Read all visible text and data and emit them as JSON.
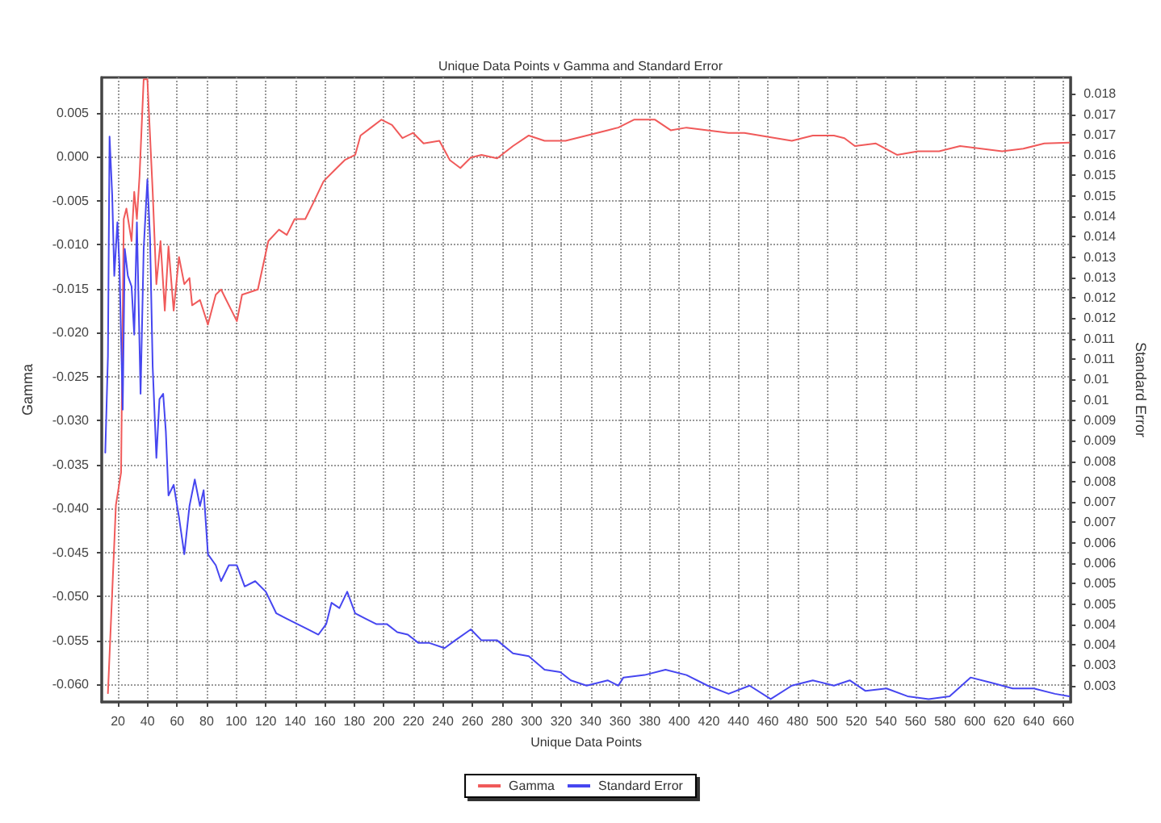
{
  "chart_data": {
    "type": "line",
    "title": "Unique Data Points v Gamma and Standard Error",
    "xlabel": "Unique Data Points",
    "ylabel": "Gamma",
    "y2label": "Standard Error",
    "xlim": [
      9,
      665
    ],
    "xticks": [
      20,
      40,
      60,
      80,
      100,
      120,
      140,
      160,
      180,
      200,
      220,
      240,
      260,
      280,
      300,
      320,
      340,
      360,
      380,
      400,
      420,
      440,
      460,
      480,
      500,
      520,
      540,
      560,
      580,
      600,
      620,
      640,
      660
    ],
    "ylim": [
      -0.062,
      0.009
    ],
    "yticks": [
      {
        "value": 0.005,
        "label": "0.005"
      },
      {
        "value": 0,
        "label": "0.000"
      },
      {
        "value": -0.005,
        "label": "-0.005"
      },
      {
        "value": -0.01,
        "label": "-0.010"
      },
      {
        "value": -0.015,
        "label": "-0.015"
      },
      {
        "value": -0.02,
        "label": "-0.020"
      },
      {
        "value": -0.025,
        "label": "-0.025"
      },
      {
        "value": -0.03,
        "label": "-0.030"
      },
      {
        "value": -0.035,
        "label": "-0.035"
      },
      {
        "value": -0.04,
        "label": "-0.040"
      },
      {
        "value": -0.045,
        "label": "-0.045"
      },
      {
        "value": -0.05,
        "label": "-0.050"
      },
      {
        "value": -0.055,
        "label": "-0.055"
      },
      {
        "value": -0.06,
        "label": "-0.060"
      }
    ],
    "y2lim": [
      0.0026,
      0.0179
    ],
    "y2ticks": [
      {
        "value": 0.003,
        "label": "0.003"
      },
      {
        "value": 0.0035,
        "label": "0.003"
      },
      {
        "value": 0.004,
        "label": "0.004"
      },
      {
        "value": 0.0045,
        "label": "0.004"
      },
      {
        "value": 0.005,
        "label": "0.005"
      },
      {
        "value": 0.0055,
        "label": "0.005"
      },
      {
        "value": 0.006,
        "label": "0.006"
      },
      {
        "value": 0.0065,
        "label": "0.006"
      },
      {
        "value": 0.007,
        "label": "0.007"
      },
      {
        "value": 0.0075,
        "label": "0.007"
      },
      {
        "value": 0.008,
        "label": "0.008"
      },
      {
        "value": 0.0085,
        "label": "0.008"
      },
      {
        "value": 0.009,
        "label": "0.009"
      },
      {
        "value": 0.0095,
        "label": "0.009"
      },
      {
        "value": 0.01,
        "label": "0.01"
      },
      {
        "value": 0.0105,
        "label": "0.01"
      },
      {
        "value": 0.011,
        "label": "0.011"
      },
      {
        "value": 0.0115,
        "label": "0.011"
      },
      {
        "value": 0.012,
        "label": "0.012"
      },
      {
        "value": 0.0125,
        "label": "0.012"
      },
      {
        "value": 0.013,
        "label": "0.013"
      },
      {
        "value": 0.0135,
        "label": "0.013"
      },
      {
        "value": 0.014,
        "label": "0.014"
      },
      {
        "value": 0.0145,
        "label": "0.014"
      },
      {
        "value": 0.015,
        "label": "0.015"
      },
      {
        "value": 0.0155,
        "label": "0.015"
      },
      {
        "value": 0.016,
        "label": "0.016"
      },
      {
        "value": 0.0165,
        "label": "0.017"
      },
      {
        "value": 0.017,
        "label": "0.017"
      },
      {
        "value": 0.0175,
        "label": "0.018"
      }
    ],
    "grid": true,
    "legend": "bottom",
    "marker": "none",
    "line_style": "solid",
    "series": [
      {
        "name": "Gamma",
        "color": "#f05a5a",
        "x": [
          13.2,
          18.6,
          22.1,
          23.9,
          25.7,
          29.2,
          31.0,
          32.8,
          34.6,
          37.4,
          39.9,
          43.5,
          46.0,
          48.8,
          51.7,
          54.2,
          57.7,
          61.3,
          64.9,
          68.4,
          70.2,
          75.5,
          80.9,
          86.2,
          89.8,
          93.3,
          96.9,
          100.5,
          104.0,
          109.4,
          114.7,
          121.8,
          129.0,
          134.3,
          139.6,
          146.8,
          152.1,
          159.2,
          166.3,
          173.5,
          180.6,
          184.2,
          191.3,
          198.4,
          205.5,
          212.6,
          219.8,
          226.9,
          237.6,
          244.7,
          251.8,
          258.9,
          266.1,
          276.7,
          287.4,
          298.1,
          308.8,
          323.0,
          337.3,
          351.5,
          358.7,
          369.3,
          383.6,
          394.2,
          404.9,
          419.2,
          433.4,
          444.1,
          454.8,
          465.5,
          476.2,
          490.4,
          504.7,
          511.8,
          518.9,
          533.1,
          547.4,
          561.6,
          575.9,
          590.1,
          604.4,
          618.6,
          632.9,
          647.1,
          664
        ],
        "values": [
          -0.061,
          -0.0396,
          -0.0359,
          -0.0071,
          -0.0059,
          -0.0096,
          -0.004,
          -0.0071,
          -0.0022,
          0.0088,
          0.0088,
          -0.004,
          -0.0145,
          -0.0096,
          -0.0175,
          -0.0102,
          -0.0175,
          -0.0114,
          -0.0145,
          -0.0138,
          -0.0169,
          -0.0163,
          -0.0191,
          -0.0157,
          -0.0151,
          -0.0163,
          -0.0175,
          -0.0187,
          -0.0157,
          -0.0154,
          -0.0151,
          -0.0096,
          -0.0083,
          -0.0089,
          -0.0071,
          -0.0071,
          -0.0053,
          -0.0028,
          -0.0016,
          -0.0004,
          0.0002,
          0.0024,
          0.0033,
          0.0042,
          0.0036,
          0.0021,
          0.0027,
          0.0015,
          0.0018,
          -0.0004,
          -0.0013,
          -0.0001,
          0.0002,
          -0.0002,
          0.0012,
          0.0024,
          0.0018,
          0.0018,
          0.0024,
          0.003,
          0.0033,
          0.0042,
          0.0042,
          0.003,
          0.0033,
          0.003,
          0.0027,
          0.0027,
          0.0024,
          0.0021,
          0.0018,
          0.0024,
          0.0024,
          0.0021,
          0.0012,
          0.0015,
          0.0002,
          0.0006,
          0.0006,
          0.0012,
          0.0009,
          0.0006,
          0.0009,
          0.0015,
          0.0016
        ]
      },
      {
        "name": "Standard Error",
        "color": "#4646f0",
        "axis": "y2",
        "x": [
          11.4,
          13.2,
          14.3,
          16.1,
          17.5,
          19.6,
          21.0,
          23.2,
          24.6,
          26.7,
          29.2,
          31.0,
          32.8,
          35.3,
          37.4,
          39.9,
          41.7,
          43.5,
          46.0,
          48.1,
          50.6,
          52.4,
          54.2,
          57.7,
          61.3,
          64.9,
          68.4,
          72.0,
          75.5,
          78.0,
          80.9,
          86.2,
          89.8,
          95.1,
          100.5,
          105.8,
          112.9,
          120.1,
          127.2,
          134.3,
          141.4,
          148.5,
          155.7,
          161.0,
          164.6,
          169.9,
          175.2,
          180.6,
          187.7,
          194.8,
          202.0,
          209.1,
          216.2,
          223.3,
          230.4,
          241.1,
          248.3,
          258.9,
          266.1,
          276.7,
          287.4,
          298.1,
          308.8,
          319.5,
          326.6,
          337.3,
          351.5,
          358.7,
          362.2,
          376.5,
          390.7,
          404.9,
          419.2,
          433.4,
          447.6,
          461.9,
          476.2,
          490.4,
          504.7,
          515.4,
          526.1,
          540.3,
          554.5,
          568.8,
          583.0,
          597.2,
          611.5,
          625.7,
          640.0,
          654.3,
          664
        ],
        "values": [
          0.00871,
          0.01107,
          0.01645,
          0.01501,
          0.01304,
          0.01435,
          0.0133,
          0.00976,
          0.0137,
          0.01304,
          0.01278,
          0.0116,
          0.01435,
          0.01015,
          0.0137,
          0.0154,
          0.01396,
          0.01081,
          0.00858,
          0.01002,
          0.01015,
          0.00923,
          0.00766,
          0.00792,
          0.00713,
          0.00622,
          0.0074,
          0.00805,
          0.0074,
          0.00779,
          0.00622,
          0.00595,
          0.00556,
          0.00595,
          0.00595,
          0.00543,
          0.00556,
          0.0053,
          0.00477,
          0.00464,
          0.00451,
          0.00438,
          0.00425,
          0.00451,
          0.00503,
          0.0049,
          0.0053,
          0.00477,
          0.00464,
          0.00451,
          0.00451,
          0.00431,
          0.00425,
          0.00405,
          0.00405,
          0.00392,
          0.00411,
          0.00438,
          0.00411,
          0.00411,
          0.00379,
          0.00372,
          0.00339,
          0.00333,
          0.00313,
          0.003,
          0.00313,
          0.003,
          0.0032,
          0.00326,
          0.00339,
          0.00326,
          0.003,
          0.0028,
          0.003,
          0.00267,
          0.003,
          0.00313,
          0.003,
          0.00313,
          0.00287,
          0.00293,
          0.00274,
          0.00267,
          0.00274,
          0.0032,
          0.00307,
          0.00293,
          0.00293,
          0.0028,
          0.00274
        ]
      }
    ]
  }
}
